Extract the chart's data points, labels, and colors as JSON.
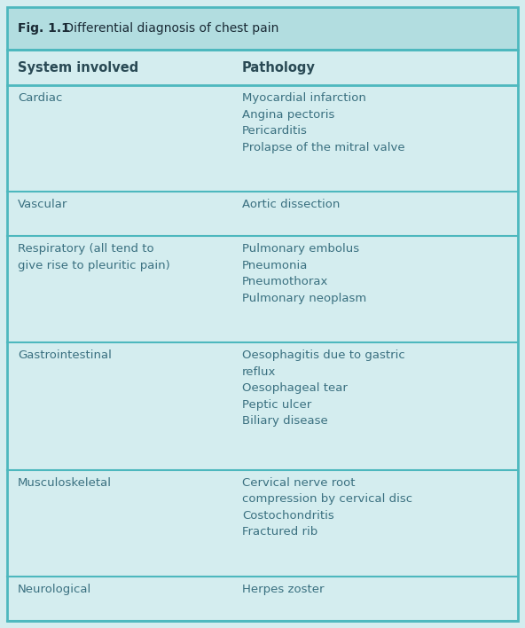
{
  "title_bold": "Fig. 1.1",
  "title_normal": " Differential diagnosis of chest pain",
  "title_bg": "#b2dde0",
  "row_bg": "#d4edef",
  "border_color": "#4db8be",
  "col1_header": "System involved",
  "col2_header": "Pathology",
  "rows": [
    {
      "system": "Cardiac",
      "pathology": "Myocardial infarction\nAngina pectoris\nPericarditis\nProlapse of the mitral valve"
    },
    {
      "system": "Vascular",
      "pathology": "Aortic dissection"
    },
    {
      "system": "Respiratory (all tend to\ngive rise to pleuritic pain)",
      "pathology": "Pulmonary embolus\nPneumonia\nPneumothorax\nPulmonary neoplasm"
    },
    {
      "system": "Gastrointestinal",
      "pathology": "Oesophagitis due to gastric\nreflux\nOesophageal tear\nPeptic ulcer\nBiliary disease"
    },
    {
      "system": "Musculoskeletal",
      "pathology": "Cervical nerve root\ncompression by cervical disc\nCostochondritis\nFractured rib"
    },
    {
      "system": "Neurological",
      "pathology": "Herpes zoster"
    }
  ],
  "text_color": "#3a7080",
  "header_text_color": "#2a4a55",
  "title_text_color": "#1a2a35",
  "figsize": [
    5.92,
    7.08
  ],
  "dpi": 100,
  "font_size": 9.5,
  "header_font_size": 10.5
}
